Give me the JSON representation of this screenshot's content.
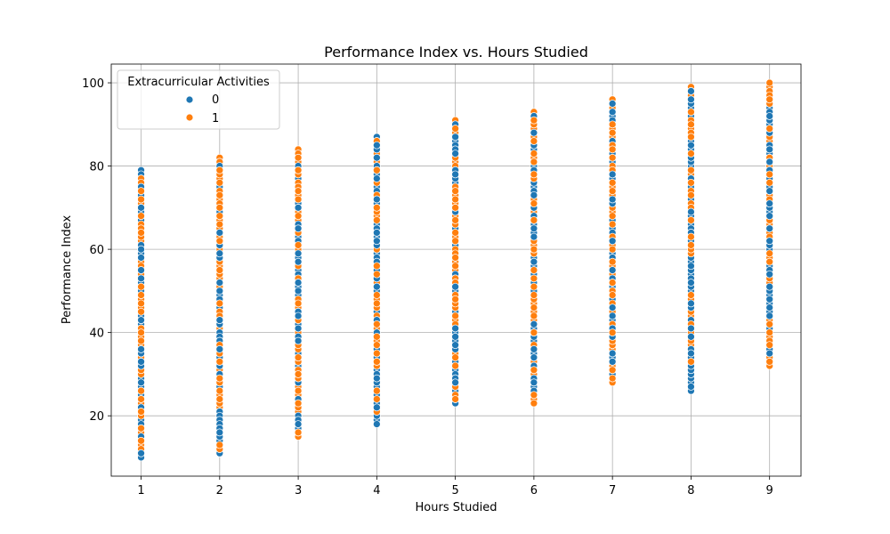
{
  "chart_data": {
    "type": "scatter",
    "title": "Performance Index vs. Hours Studied",
    "xlabel": "Hours Studied",
    "ylabel": "Performance Index",
    "xlim": [
      0.62,
      9.4
    ],
    "ylim": [
      5.5,
      104.5
    ],
    "x_ticks": [
      1,
      2,
      3,
      4,
      5,
      6,
      7,
      8,
      9
    ],
    "y_ticks": [
      20,
      40,
      60,
      80,
      100
    ],
    "grid": true,
    "legend": {
      "title": "Extracurricular Activities",
      "placement": "top-left"
    },
    "series": [
      {
        "name": "0",
        "color": "#1f77b4",
        "groups": [
          {
            "x": 1,
            "y_min": 10,
            "y_max": 79
          },
          {
            "x": 2,
            "y_min": 11,
            "y_max": 81
          },
          {
            "x": 3,
            "y_min": 16,
            "y_max": 83
          },
          {
            "x": 4,
            "y_min": 18,
            "y_max": 87
          },
          {
            "x": 5,
            "y_min": 23,
            "y_max": 90
          },
          {
            "x": 6,
            "y_min": 24,
            "y_max": 92
          },
          {
            "x": 7,
            "y_min": 29,
            "y_max": 95
          },
          {
            "x": 8,
            "y_min": 26,
            "y_max": 98
          },
          {
            "x": 9,
            "y_min": 33,
            "y_max": 99
          }
        ]
      },
      {
        "name": "1",
        "color": "#ff7f0e",
        "groups": [
          {
            "x": 1,
            "y_min": 11,
            "y_max": 77
          },
          {
            "x": 2,
            "y_min": 11,
            "y_max": 82
          },
          {
            "x": 3,
            "y_min": 15,
            "y_max": 84
          },
          {
            "x": 4,
            "y_min": 19,
            "y_max": 86
          },
          {
            "x": 5,
            "y_min": 24,
            "y_max": 91
          },
          {
            "x": 6,
            "y_min": 23,
            "y_max": 93
          },
          {
            "x": 7,
            "y_min": 28,
            "y_max": 96
          },
          {
            "x": 8,
            "y_min": 29,
            "y_max": 99
          },
          {
            "x": 9,
            "y_min": 32,
            "y_max": 100
          }
        ]
      }
    ]
  }
}
